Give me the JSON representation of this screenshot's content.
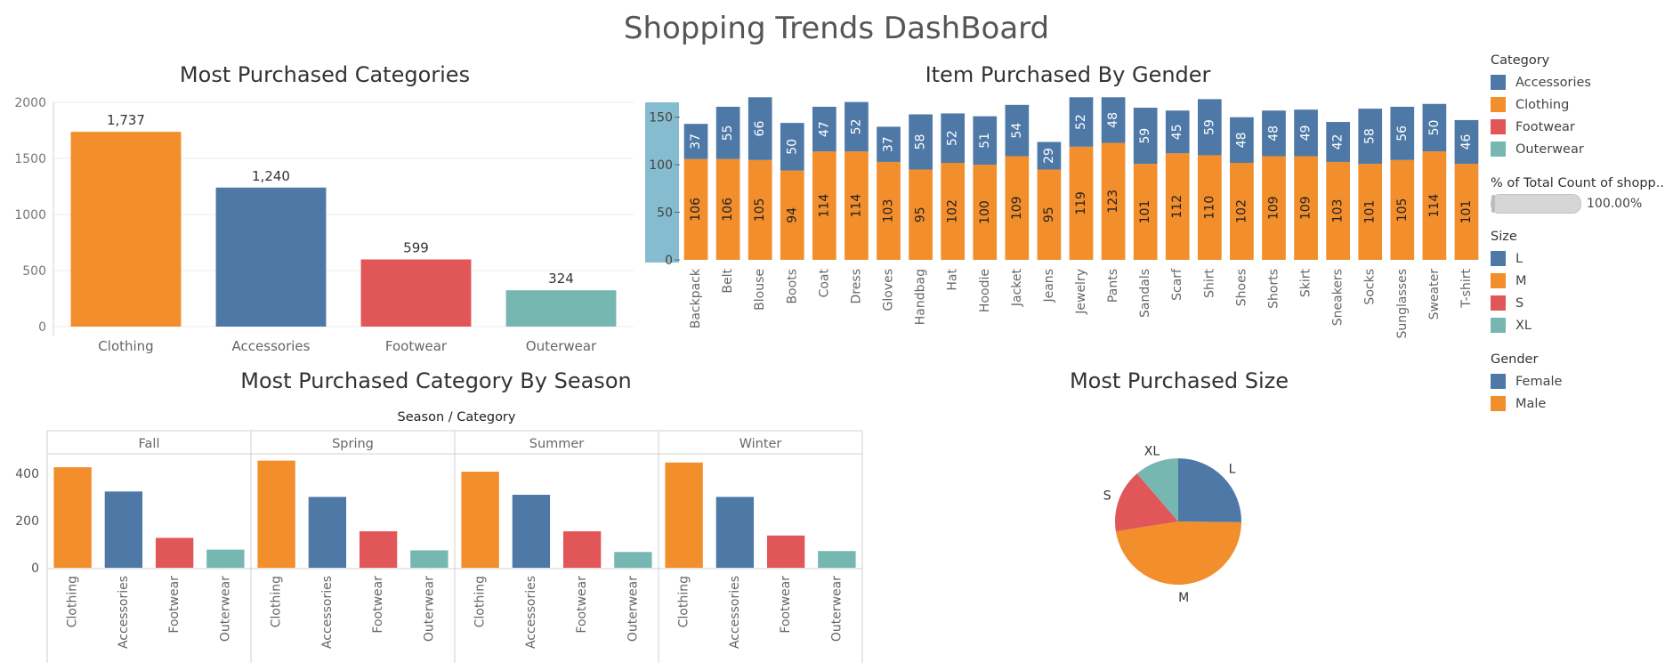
{
  "dashboard_title": "Shopping Trends DashBoard",
  "colors": {
    "blue": "#4e79a7",
    "orange": "#f28e2b",
    "red": "#e15759",
    "teal": "#76b7b2",
    "axis_band": "#86bccf"
  },
  "chart_data": [
    {
      "type": "bar",
      "title": "Most Purchased Categories",
      "categories": [
        "Clothing",
        "Accessories",
        "Footwear",
        "Outerwear"
      ],
      "values": [
        1737,
        1240,
        599,
        324
      ],
      "data_labels": [
        "1,737",
        "1,240",
        "599",
        "324"
      ],
      "colors": [
        "#f28e2b",
        "#4e79a7",
        "#e15759",
        "#76b7b2"
      ],
      "ylim": [
        0,
        2000
      ],
      "yticks": [
        0,
        500,
        1000,
        1500,
        2000
      ]
    },
    {
      "type": "bar",
      "stacked": true,
      "title": "Item Purchased By Gender",
      "categories": [
        "Backpack",
        "Belt",
        "Blouse",
        "Boots",
        "Coat",
        "Dress",
        "Gloves",
        "Handbag",
        "Hat",
        "Hoodie",
        "Jacket",
        "Jeans",
        "Jewelry",
        "Pants",
        "Sandals",
        "Scarf",
        "Shirt",
        "Shoes",
        "Shorts",
        "Skirt",
        "Sneakers",
        "Socks",
        "Sunglasses",
        "Sweater",
        "T-shirt"
      ],
      "series": [
        {
          "name": "Male",
          "color": "#f28e2b",
          "values": [
            106,
            106,
            105,
            94,
            114,
            114,
            103,
            95,
            102,
            100,
            109,
            95,
            119,
            123,
            101,
            112,
            110,
            102,
            109,
            109,
            103,
            101,
            105,
            114,
            101
          ]
        },
        {
          "name": "Female",
          "color": "#4e79a7",
          "values": [
            37,
            55,
            66,
            50,
            47,
            52,
            37,
            58,
            52,
            51,
            54,
            29,
            52,
            48,
            59,
            45,
            59,
            48,
            48,
            49,
            42,
            58,
            56,
            50,
            46
          ]
        }
      ],
      "ylim": [
        0,
        175
      ],
      "yticks": [
        0,
        50,
        100,
        150
      ]
    },
    {
      "type": "bar",
      "title": "Most Purchased Category By Season",
      "header": "Season / Category",
      "seasons": [
        "Fall",
        "Spring",
        "Summer",
        "Winter"
      ],
      "categories": [
        "Clothing",
        "Accessories",
        "Footwear",
        "Outerwear"
      ],
      "colors": [
        "#f28e2b",
        "#4e79a7",
        "#e15759",
        "#76b7b2"
      ],
      "values": [
        [
          427,
          324,
          127,
          77
        ],
        [
          455,
          301,
          155,
          74
        ],
        [
          408,
          310,
          155,
          67
        ],
        [
          447,
          301,
          137,
          71
        ]
      ],
      "ylim": [
        0,
        480
      ],
      "yticks": [
        0,
        200,
        400
      ]
    },
    {
      "type": "pie",
      "title": "Most Purchased Size",
      "labels": [
        "L",
        "M",
        "S",
        "XL"
      ],
      "values": [
        25.2,
        47.3,
        16.2,
        11.3
      ],
      "colors": [
        "#4e79a7",
        "#f28e2b",
        "#e15759",
        "#76b7b2"
      ]
    }
  ],
  "legend": {
    "groups": [
      {
        "title": "Category",
        "items": [
          {
            "label": "Accessories",
            "color": "#4e79a7"
          },
          {
            "label": "Clothing",
            "color": "#f28e2b"
          },
          {
            "label": "Footwear",
            "color": "#e15759"
          },
          {
            "label": "Outerwear",
            "color": "#76b7b2"
          }
        ]
      },
      {
        "title": "% of Total Count of shopp..",
        "slider_value": "100.00%"
      },
      {
        "title": "Size",
        "items": [
          {
            "label": "L",
            "color": "#4e79a7"
          },
          {
            "label": "M",
            "color": "#f28e2b"
          },
          {
            "label": "S",
            "color": "#e15759"
          },
          {
            "label": "XL",
            "color": "#76b7b2"
          }
        ]
      },
      {
        "title": "Gender",
        "items": [
          {
            "label": "Female",
            "color": "#4e79a7"
          },
          {
            "label": "Male",
            "color": "#f28e2b"
          }
        ]
      }
    ]
  }
}
